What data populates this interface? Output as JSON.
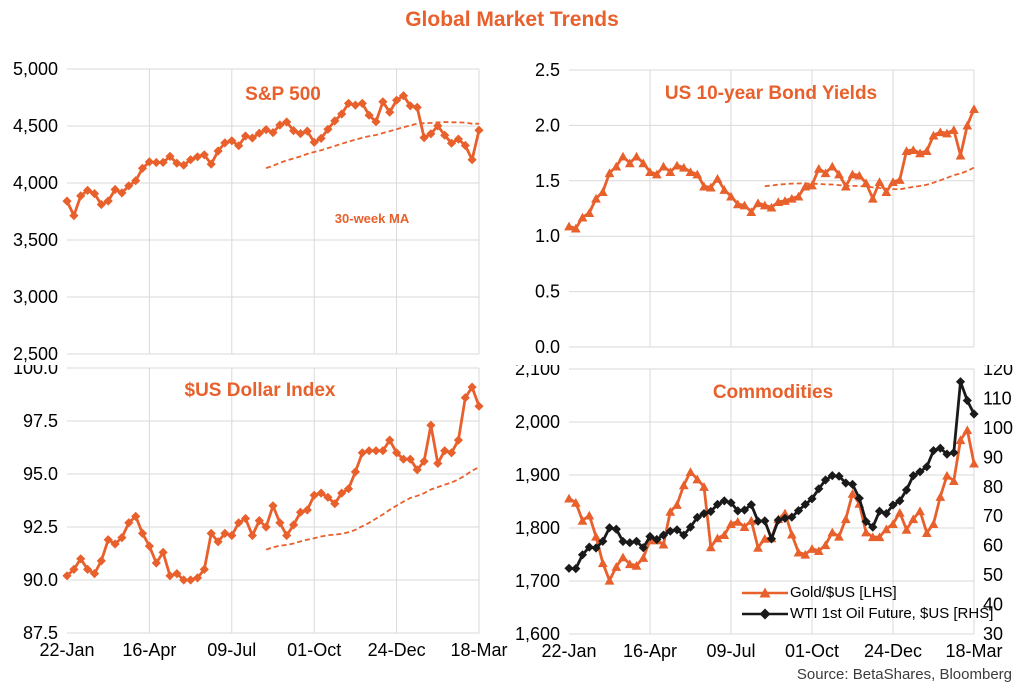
{
  "page": {
    "title": "Global Market Trends",
    "source": "Source: BetaShares, Bloomberg",
    "colors": {
      "accent": "#E8602C",
      "wti_black": "#1A1A1A",
      "grid": "#D9D9D9",
      "axis_text": "#000000",
      "source_text": "#3B3B3B"
    }
  },
  "chart_data": [
    {
      "type": "line",
      "title": "S&P 500",
      "annotation": "30-week MA",
      "frequency": "weekly",
      "y_axis": {
        "min": 2500,
        "max": 5000,
        "tick_labels": [
          "2,500",
          "3,000",
          "3,500",
          "4,000",
          "4,500",
          "5,000"
        ]
      },
      "x_ticks": {
        "labels": [
          "22-Jan",
          "16-Apr",
          "09-Jul",
          "01-Oct",
          "24-Dec",
          "18-Mar"
        ],
        "indices": [
          0,
          12,
          24,
          36,
          48,
          60
        ]
      },
      "ma": {
        "window": 30,
        "style": "dashed"
      },
      "series": [
        {
          "name": "S&P 500",
          "color": "#E8602C",
          "marker": "diamond",
          "axis": "left",
          "values": [
            3841,
            3714,
            3887,
            3935,
            3907,
            3811,
            3842,
            3943,
            3913,
            3975,
            4020,
            4129,
            4185,
            4180,
            4181,
            4233,
            4174,
            4156,
            4204,
            4230,
            4247,
            4166,
            4281,
            4352,
            4370,
            4327,
            4412,
            4395,
            4437,
            4468,
            4442,
            4509,
            4535,
            4459,
            4433,
            4455,
            4357,
            4391,
            4471,
            4545,
            4605,
            4698,
            4683,
            4698,
            4595,
            4538,
            4712,
            4621,
            4726,
            4766,
            4677,
            4663,
            4398,
            4432,
            4501,
            4419,
            4349,
            4385,
            4329,
            4204,
            4463
          ]
        }
      ]
    },
    {
      "type": "line",
      "title": "US 10-year Bond Yields",
      "frequency": "weekly",
      "y_axis": {
        "min": 0,
        "max": 2.5,
        "tick_labels": [
          "0.0",
          "0.5",
          "1.0",
          "1.5",
          "2.0",
          "2.5"
        ]
      },
      "x_ticks": {
        "labels": [
          "22-Jan",
          "16-Apr",
          "09-Jul",
          "01-Oct",
          "24-Dec",
          "18-Mar"
        ],
        "indices": [
          0,
          12,
          24,
          36,
          48,
          60
        ]
      },
      "ma": {
        "window": 30,
        "style": "dashed"
      },
      "series": [
        {
          "name": "US 10-year Bond Yield",
          "color": "#E8602C",
          "marker": "triangle",
          "axis": "left",
          "values": [
            1.09,
            1.07,
            1.17,
            1.21,
            1.34,
            1.4,
            1.57,
            1.63,
            1.72,
            1.66,
            1.72,
            1.66,
            1.58,
            1.56,
            1.63,
            1.58,
            1.64,
            1.62,
            1.58,
            1.56,
            1.45,
            1.44,
            1.52,
            1.42,
            1.36,
            1.29,
            1.28,
            1.22,
            1.3,
            1.28,
            1.26,
            1.31,
            1.32,
            1.34,
            1.36,
            1.45,
            1.46,
            1.61,
            1.57,
            1.63,
            1.56,
            1.45,
            1.56,
            1.55,
            1.48,
            1.34,
            1.49,
            1.4,
            1.49,
            1.51,
            1.77,
            1.78,
            1.75,
            1.77,
            1.91,
            1.94,
            1.93,
            1.96,
            1.73,
            2.0,
            2.15
          ]
        }
      ]
    },
    {
      "type": "line",
      "title": "$US Dollar Index",
      "frequency": "weekly",
      "y_axis": {
        "min": 87.5,
        "max": 100,
        "tick_labels": [
          "87.5",
          "90.0",
          "92.5",
          "95.0",
          "97.5",
          "100.0"
        ]
      },
      "x_ticks": {
        "labels": [
          "22-Jan",
          "16-Apr",
          "09-Jul",
          "01-Oct",
          "24-Dec",
          "18-Mar"
        ],
        "indices": [
          0,
          12,
          24,
          36,
          48,
          60
        ]
      },
      "ma": {
        "window": 30,
        "style": "dashed"
      },
      "series": [
        {
          "name": "$US Dollar Index",
          "color": "#E8602C",
          "marker": "diamond",
          "axis": "left",
          "values": [
            90.2,
            90.5,
            91.0,
            90.5,
            90.3,
            90.9,
            91.9,
            91.7,
            92.0,
            92.7,
            93.0,
            92.2,
            91.6,
            90.8,
            91.3,
            90.2,
            90.3,
            90.0,
            90.0,
            90.1,
            90.5,
            92.2,
            91.8,
            92.2,
            92.1,
            92.7,
            92.9,
            92.1,
            92.8,
            92.5,
            93.5,
            92.7,
            92.1,
            92.6,
            93.2,
            93.3,
            94.0,
            94.1,
            93.9,
            93.6,
            94.1,
            94.3,
            95.1,
            96.0,
            96.1,
            96.1,
            96.1,
            96.6,
            96.0,
            95.7,
            95.7,
            95.2,
            95.6,
            97.3,
            95.5,
            96.1,
            96.0,
            96.6,
            98.6,
            99.1,
            98.2
          ]
        }
      ]
    },
    {
      "type": "line",
      "title": "Commodities",
      "frequency": "weekly",
      "y_axis": {
        "min": 1600,
        "max": 2100,
        "tick_labels": [
          "1,600",
          "1,700",
          "1,800",
          "1,900",
          "2,000",
          "2,100"
        ]
      },
      "y_axis_right": {
        "min": 30,
        "max": 120,
        "tick_labels": [
          "30",
          "40",
          "50",
          "60",
          "70",
          "80",
          "90",
          "100",
          "110",
          "120"
        ]
      },
      "x_ticks": {
        "labels": [
          "22-Jan",
          "16-Apr",
          "09-Jul",
          "01-Oct",
          "24-Dec",
          "18-Mar"
        ],
        "indices": [
          0,
          12,
          24,
          36,
          48,
          60
        ]
      },
      "legend": {
        "items": [
          {
            "label": "Gold/$US [LHS]"
          },
          {
            "label": "WTI 1st Oil Future, $US [RHS]"
          }
        ]
      },
      "series": [
        {
          "name": "Gold/$US",
          "color": "#E8602C",
          "marker": "triangle",
          "axis": "left",
          "values": [
            1856,
            1848,
            1814,
            1824,
            1784,
            1734,
            1701,
            1727,
            1745,
            1732,
            1729,
            1744,
            1777,
            1777,
            1769,
            1831,
            1844,
            1881,
            1906,
            1892,
            1878,
            1764,
            1781,
            1787,
            1808,
            1812,
            1802,
            1814,
            1763,
            1780,
            1781,
            1817,
            1828,
            1788,
            1754,
            1750,
            1761,
            1757,
            1768,
            1792,
            1784,
            1817,
            1865,
            1846,
            1792,
            1783,
            1783,
            1798,
            1808,
            1829,
            1797,
            1817,
            1832,
            1791,
            1808,
            1859,
            1899,
            1889,
            1966,
            1985,
            1922
          ]
        },
        {
          "name": "WTI 1st Oil Future",
          "color": "#1A1A1A",
          "marker": "diamond",
          "axis": "right",
          "values": [
            52.3,
            52.2,
            56.9,
            59.5,
            59.2,
            61.5,
            66.1,
            65.6,
            61.4,
            61.0,
            61.5,
            59.3,
            63.1,
            62.1,
            63.6,
            64.9,
            65.4,
            63.6,
            66.3,
            69.6,
            70.9,
            71.6,
            74.0,
            75.2,
            74.6,
            71.8,
            72.1,
            73.9,
            68.3,
            68.4,
            62.3,
            68.7,
            69.3,
            69.7,
            71.9,
            74.0,
            75.9,
            79.3,
            82.3,
            83.8,
            83.6,
            81.3,
            80.8,
            76.1,
            68.2,
            66.3,
            71.7,
            70.9,
            73.8,
            75.2,
            78.9,
            83.8,
            85.1,
            86.8,
            92.3,
            93.1,
            91.1,
            91.6,
            115.7,
            109.3,
            104.7
          ]
        }
      ]
    }
  ]
}
